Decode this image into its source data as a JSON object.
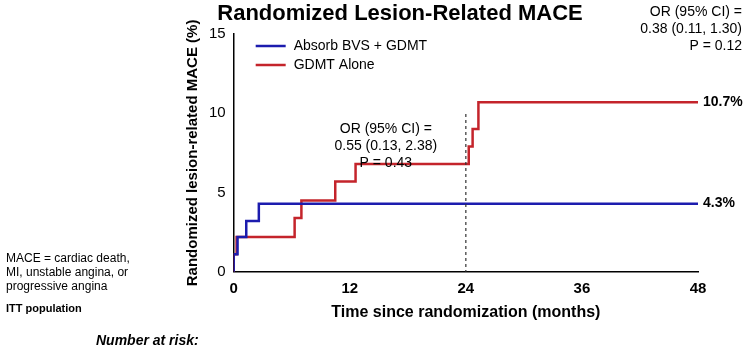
{
  "chart_data": {
    "type": "line",
    "title": "Randomized Lesion-Related MACE",
    "x_label": "Time since randomization (months)",
    "y_label": "Randomized lesion-related MACE (%)",
    "series": [
      {
        "name": "Absorb BVS + GDMT",
        "color": "#1c1cae",
        "line_style": "step",
        "x": [
          0,
          0.4,
          1.3,
          2.6,
          25.2,
          48
        ],
        "values": [
          0,
          1.1,
          2.2,
          3.2,
          4.3,
          4.3
        ],
        "end_label": "4.3%"
      },
      {
        "name": "GDMT Alone",
        "color": "#c4242b",
        "line_style": "step",
        "x": [
          0,
          0.3,
          6.3,
          7.0,
          10.5,
          12.6,
          24.3,
          24.7,
          25.3,
          43.7,
          48
        ],
        "values": [
          0,
          1.1,
          2.2,
          3.4,
          4.5,
          5.7,
          6.8,
          7.9,
          9.0,
          10.7,
          10.7
        ],
        "end_label": "10.7%"
      }
    ],
    "xlim": [
      0,
      48
    ],
    "xticks": [
      0,
      12,
      24,
      36,
      48
    ],
    "ylim": [
      0,
      15
    ],
    "yticks": [
      0,
      5,
      10,
      15
    ],
    "grid": false,
    "legend": "upper left",
    "reference_lines": [
      {
        "x": 24,
        "line_style": "dashed"
      }
    ],
    "annotations": [
      {
        "x": 24,
        "lines": [
          "OR (95% CI) =",
          "0.55 (0.13, 2.38)",
          "P = 0.43"
        ]
      },
      {
        "x": 48,
        "lines": [
          "OR (95% CI) =",
          "0.38 (0.11, 1.30)",
          "P = 0.12"
        ]
      }
    ],
    "footnotes": [
      "MACE = cardiac death,",
      "MI, unstable angina, or",
      "progressive angina"
    ],
    "population": "ITT population",
    "risk_table_label": "Number at risk:"
  }
}
